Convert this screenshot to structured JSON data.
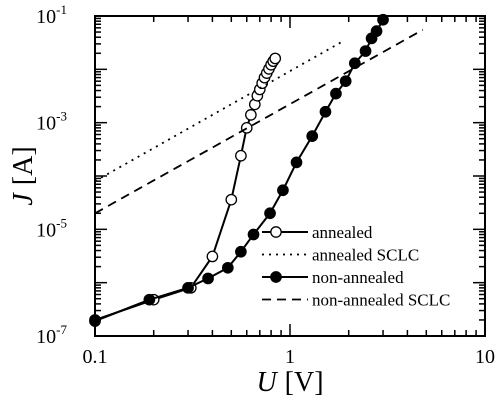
{
  "chart_data": {
    "type": "line",
    "xscale": "log",
    "yscale": "log",
    "xlim": [
      0.1,
      10
    ],
    "ylim": [
      1e-07,
      0.1
    ],
    "xlabel_var": "U",
    "xlabel_unit": "[V]",
    "ylabel_var": "J",
    "ylabel_unit": "[A]",
    "x_ticks": [
      {
        "value": 0.1,
        "label": "0.1"
      },
      {
        "value": 1,
        "label": "1"
      },
      {
        "value": 10,
        "label": "10"
      }
    ],
    "y_ticks": [
      {
        "value": 1e-07,
        "base": "10",
        "exp": "-7"
      },
      {
        "value": 1e-05,
        "base": "10",
        "exp": "-5"
      },
      {
        "value": 0.001,
        "base": "10",
        "exp": "-3"
      },
      {
        "value": 0.1,
        "base": "10",
        "exp": "-1"
      }
    ],
    "grid": false,
    "legend_position": "lower-right",
    "series": [
      {
        "name": "annealed",
        "style": "open-circle-line",
        "color": "#000000",
        "points": [
          [
            0.1,
            2e-07
          ],
          [
            0.2,
            4.8e-07
          ],
          [
            0.31,
            8e-07
          ],
          [
            0.4,
            3.1e-06
          ],
          [
            0.5,
            3.6e-05
          ],
          [
            0.56,
            0.00024
          ],
          [
            0.6,
            0.0008
          ],
          [
            0.63,
            0.0014
          ],
          [
            0.66,
            0.0022
          ],
          [
            0.68,
            0.0032
          ],
          [
            0.7,
            0.0042
          ],
          [
            0.72,
            0.0055
          ],
          [
            0.74,
            0.007
          ],
          [
            0.76,
            0.0085
          ],
          [
            0.78,
            0.0102
          ],
          [
            0.8,
            0.0122
          ],
          [
            0.82,
            0.0142
          ],
          [
            0.84,
            0.016
          ]
        ]
      },
      {
        "name": "annealed SCLC",
        "style": "dotted",
        "color": "#000000",
        "points": [
          [
            0.1,
            8e-05
          ],
          [
            1.85,
            0.033
          ]
        ]
      },
      {
        "name": "non-annealed",
        "style": "filled-circle-line",
        "color": "#000000",
        "points": [
          [
            0.1,
            1.9e-07
          ],
          [
            0.19,
            4.8e-07
          ],
          [
            0.3,
            8e-07
          ],
          [
            0.38,
            1.2e-06
          ],
          [
            0.48,
            1.9e-06
          ],
          [
            0.56,
            3.8e-06
          ],
          [
            0.65,
            8e-06
          ],
          [
            0.79,
            2e-05
          ],
          [
            0.92,
            5.4e-05
          ],
          [
            1.08,
            0.00018
          ],
          [
            1.3,
            0.00056
          ],
          [
            1.52,
            0.0016
          ],
          [
            1.72,
            0.0035
          ],
          [
            1.93,
            0.006
          ],
          [
            2.15,
            0.013
          ],
          [
            2.44,
            0.022
          ],
          [
            2.62,
            0.038
          ],
          [
            2.78,
            0.052
          ],
          [
            3.0,
            0.085
          ]
        ]
      },
      {
        "name": "non-annealed SCLC",
        "style": "dashed",
        "color": "#000000",
        "points": [
          [
            0.1,
            2e-05
          ],
          [
            4.8,
            0.055
          ]
        ]
      }
    ]
  }
}
